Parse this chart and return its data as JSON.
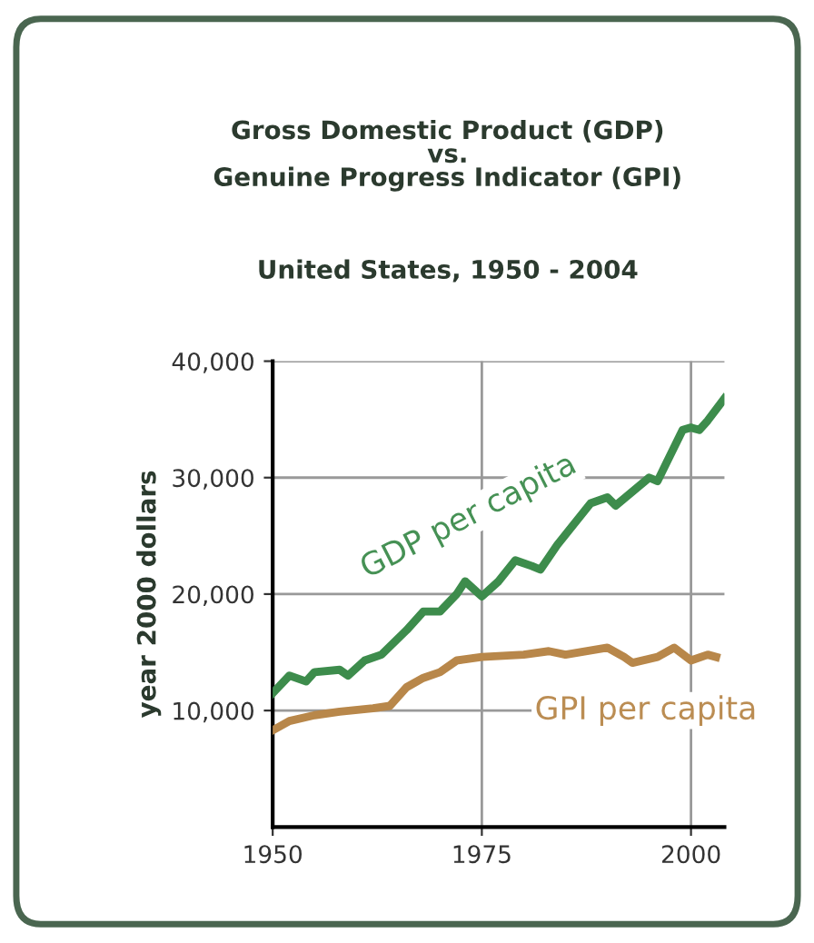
{
  "chart_data": {
    "type": "line",
    "title": "Gross Domestic Product (GDP)\nvs.\nGenuine Progress Indicator (GPI)",
    "subtitle": "United States, 1950 - 2004",
    "ylabel": "year 2000 dollars",
    "xlim": [
      1950,
      2004
    ],
    "xticks": [
      1950,
      1975,
      2000
    ],
    "ylim": [
      0,
      40000
    ],
    "yticks": [
      {
        "value": 10000,
        "label": "10,000"
      },
      {
        "value": 20000,
        "label": "20,000"
      },
      {
        "value": 30000,
        "label": "30,000"
      },
      {
        "value": 40000,
        "label": "40,000"
      }
    ],
    "grid": true,
    "legend": false,
    "marker": "none",
    "line_style": "solid",
    "series": [
      {
        "name": "GDP per capita",
        "color": "#3d8c4c",
        "x": [
          1950,
          1952,
          1954,
          1955,
          1958,
          1959,
          1961,
          1963,
          1966,
          1968,
          1970,
          1972,
          1973,
          1975,
          1977,
          1979,
          1981,
          1982,
          1984,
          1988,
          1990,
          1991,
          1995,
          1996,
          1999,
          2000,
          2001,
          2002,
          2004
        ],
        "values": [
          11500,
          13000,
          12500,
          13300,
          13500,
          13000,
          14300,
          14800,
          16900,
          18500,
          18500,
          20000,
          21100,
          19800,
          21100,
          22900,
          22400,
          22100,
          24200,
          27800,
          28300,
          27600,
          30000,
          29700,
          34100,
          34300,
          34100,
          34900,
          36800
        ]
      },
      {
        "name": "GPI per capita",
        "color": "#b8874a",
        "x": [
          1950,
          1952,
          1955,
          1958,
          1962,
          1964,
          1966,
          1968,
          1970,
          1972,
          1975,
          1980,
          1983,
          1985,
          1990,
          1992,
          1993,
          1996,
          1998,
          2000,
          2002,
          2003
        ],
        "values": [
          8300,
          9100,
          9600,
          9900,
          10200,
          10400,
          12000,
          12800,
          13300,
          14300,
          14600,
          14800,
          15100,
          14800,
          15400,
          14600,
          14100,
          14600,
          15400,
          14300,
          14800,
          14600
        ]
      }
    ]
  }
}
